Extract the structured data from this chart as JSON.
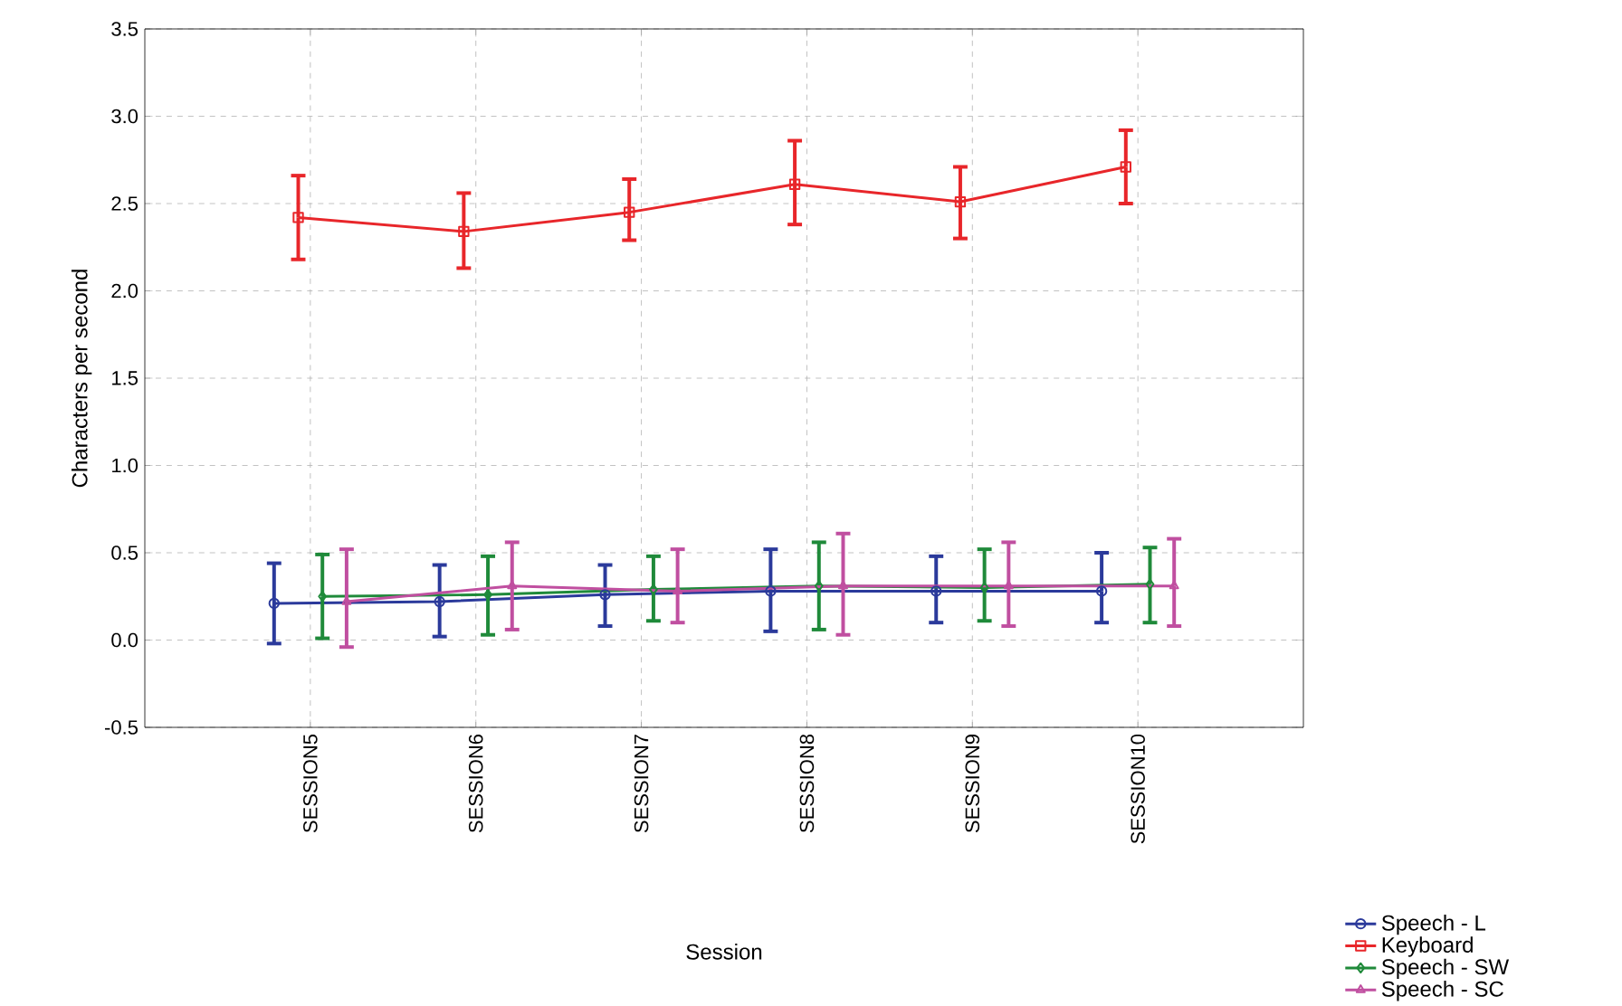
{
  "chart_data": {
    "type": "line",
    "xlabel": "Session",
    "ylabel": "Characters per second",
    "categories": [
      "SESSION5",
      "SESSION6",
      "SESSION7",
      "SESSION8",
      "SESSION9",
      "SESSION10"
    ],
    "series": [
      {
        "name": "Speech - L",
        "color": "#2b3a9b",
        "marker": "circle",
        "values": [
          0.21,
          0.22,
          0.26,
          0.28,
          0.28,
          0.28
        ],
        "errors": [
          [
            -0.02,
            0.44
          ],
          [
            0.02,
            0.43
          ],
          [
            0.08,
            0.43
          ],
          [
            0.05,
            0.52
          ],
          [
            0.1,
            0.48
          ],
          [
            0.1,
            0.5
          ]
        ]
      },
      {
        "name": "Keyboard",
        "color": "#e8262a",
        "marker": "square",
        "values": [
          2.42,
          2.34,
          2.45,
          2.61,
          2.51,
          2.71
        ],
        "errors": [
          [
            2.18,
            2.66
          ],
          [
            2.13,
            2.56
          ],
          [
            2.29,
            2.64
          ],
          [
            2.38,
            2.86
          ],
          [
            2.3,
            2.71
          ],
          [
            2.5,
            2.92
          ]
        ]
      },
      {
        "name": "Speech - SW",
        "color": "#1f8a3a",
        "marker": "diamond",
        "values": [
          0.25,
          0.26,
          0.29,
          0.31,
          0.3,
          0.32
        ],
        "errors": [
          [
            0.01,
            0.49
          ],
          [
            0.03,
            0.48
          ],
          [
            0.11,
            0.48
          ],
          [
            0.06,
            0.56
          ],
          [
            0.11,
            0.52
          ],
          [
            0.1,
            0.53
          ]
        ]
      },
      {
        "name": "Speech - SC",
        "color": "#c04fa0",
        "marker": "triangle",
        "values": [
          0.22,
          0.31,
          0.28,
          0.31,
          0.31,
          0.31
        ],
        "errors": [
          [
            -0.04,
            0.52
          ],
          [
            0.06,
            0.56
          ],
          [
            0.1,
            0.52
          ],
          [
            0.03,
            0.61
          ],
          [
            0.08,
            0.56
          ],
          [
            0.08,
            0.58
          ]
        ]
      }
    ],
    "ylim": [
      -0.5,
      3.5
    ],
    "yticks": [
      {
        "value": -0.5,
        "label": "-0.5"
      },
      {
        "value": 0,
        "label": "0.0"
      },
      {
        "value": 0.5,
        "label": "0.5"
      },
      {
        "value": 1,
        "label": "1.0"
      },
      {
        "value": 1.5,
        "label": "1.5"
      },
      {
        "value": 2,
        "label": "2.0"
      },
      {
        "value": 2.5,
        "label": "2.5"
      },
      {
        "value": 3,
        "label": "3.0"
      },
      {
        "value": 3.5,
        "label": "3.5"
      }
    ],
    "grid": true,
    "legend": "bottom right",
    "line_style": "solid"
  }
}
